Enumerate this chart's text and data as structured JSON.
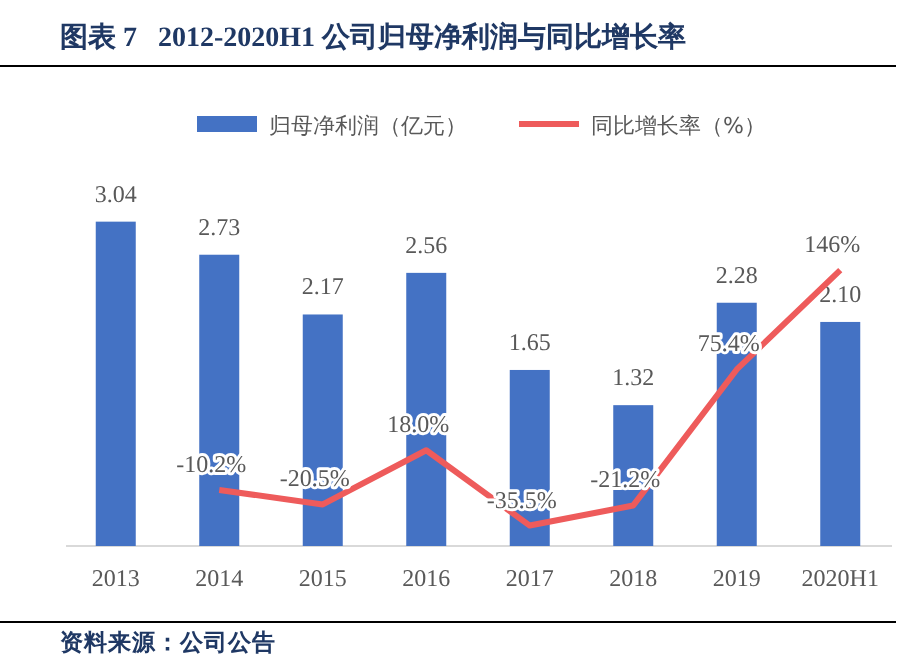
{
  "chart_data": {
    "type": "bar",
    "title": "图表 7   2012-2020H1 公司归母净利润与同比增长率",
    "categories": [
      "2013",
      "2014",
      "2015",
      "2016",
      "2017",
      "2018",
      "2019",
      "2020H1"
    ],
    "series": [
      {
        "name": "归母净利润（亿元）",
        "color": "#4472c4",
        "values": [
          3.04,
          2.73,
          2.17,
          2.56,
          1.65,
          1.32,
          2.28,
          2.1
        ],
        "value_labels": [
          "3.04",
          "2.73",
          "2.17",
          "2.56",
          "1.65",
          "1.32",
          "2.28",
          "2.10"
        ]
      },
      {
        "name": "同比增长率（%）",
        "type": "line",
        "axis": "y2",
        "color": "#ee5b5b",
        "values": [
          null,
          -10.2,
          -20.5,
          18.0,
          -35.5,
          -21.2,
          75.4,
          146
        ],
        "value_labels": [
          null,
          "-10.2%",
          "-20.5%",
          "18.0%",
          "-35.5%",
          "-21.2%",
          "75.4%",
          "146%"
        ]
      }
    ],
    "tick_labels": "x",
    "legend": "top",
    "marker": "none",
    "annotations": [
      "资料来源：公司公告"
    ]
  }
}
